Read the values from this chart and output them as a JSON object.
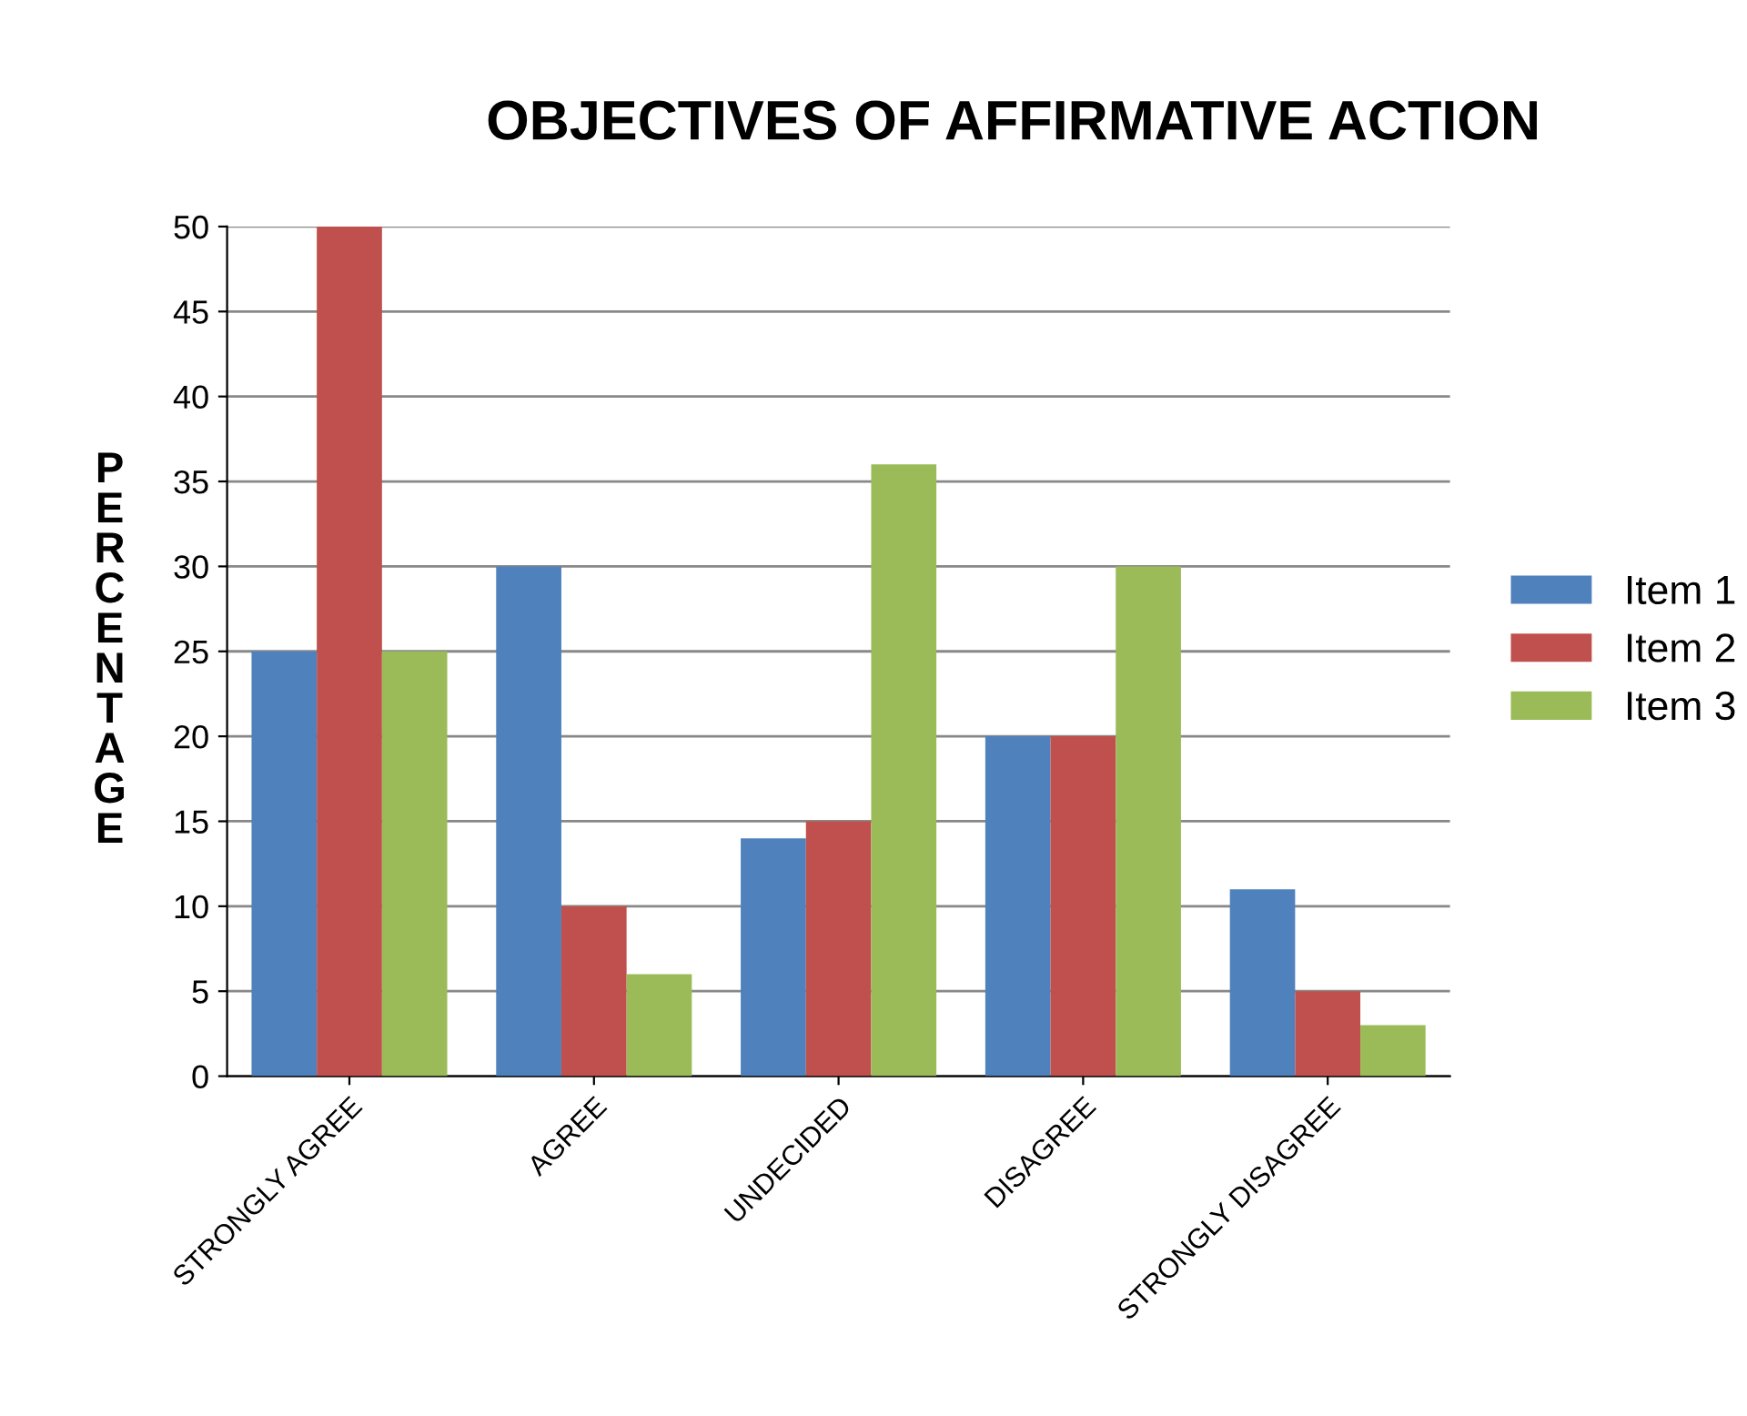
{
  "chart_data": {
    "type": "bar",
    "title": "OBJECTIVES OF AFFIRMATIVE ACTION",
    "ylabel": "PERCENTAGE",
    "categories": [
      "STRONGLY AGREE",
      "AGREE",
      "UNDECIDED",
      "DISAGREE",
      "STRONGLY DISAGREE"
    ],
    "series": [
      {
        "name": "Item 1",
        "color": "#4f81bd",
        "values": [
          25,
          30,
          14,
          20,
          11
        ]
      },
      {
        "name": "Item 2",
        "color": "#c0504d",
        "values": [
          50,
          10,
          15,
          20,
          5
        ]
      },
      {
        "name": "Item 3",
        "color": "#9bbb59",
        "values": [
          25,
          6,
          36,
          30,
          3
        ]
      }
    ],
    "ylim": [
      0,
      50
    ],
    "yticks": [
      0,
      5,
      10,
      15,
      20,
      25,
      30,
      35,
      40,
      45,
      50
    ],
    "grid": "y",
    "legend": "right"
  }
}
